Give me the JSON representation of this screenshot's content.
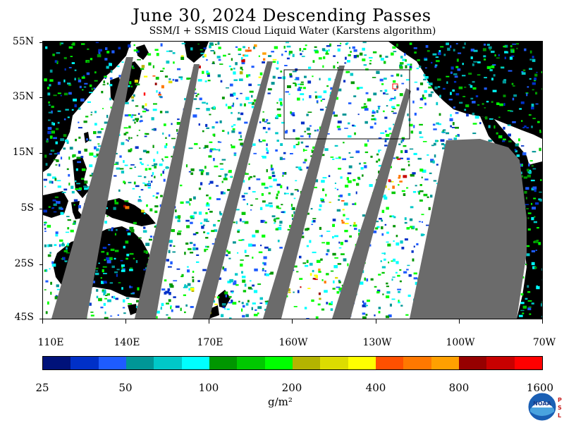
{
  "title": "June 30, 2024  Descending Passes",
  "subtitle": "SSM/I + SSMIS Cloud Liquid Water (Karstens algorithm)",
  "map": {
    "lat_labels": [
      "55N",
      "35N",
      "15N",
      "5S",
      "25S",
      "45S"
    ],
    "lon_labels": [
      "110E",
      "140E",
      "170E",
      "160W",
      "130W",
      "100W",
      "70W"
    ],
    "colors": {
      "no_data": "#6b6b6b",
      "land": "#000000",
      "clear": "#ffffff",
      "box": "#000000",
      "marker": "#ff0000"
    }
  },
  "colorbar": {
    "colors": [
      "#00127a",
      "#0030c8",
      "#1e5cff",
      "#009696",
      "#00c8c8",
      "#00ffff",
      "#009600",
      "#00c800",
      "#00ff00",
      "#b4b400",
      "#dcdc00",
      "#ffff00",
      "#ff5000",
      "#ff7800",
      "#ffa000",
      "#960000",
      "#c80000",
      "#ff0000"
    ],
    "labels": [
      "25",
      "50",
      "100",
      "200",
      "400",
      "800",
      "1600"
    ],
    "units": "g/m²"
  },
  "logo": {
    "icon": "noaa-logo-icon",
    "text": "NOAA",
    "side_text": "PSL"
  }
}
